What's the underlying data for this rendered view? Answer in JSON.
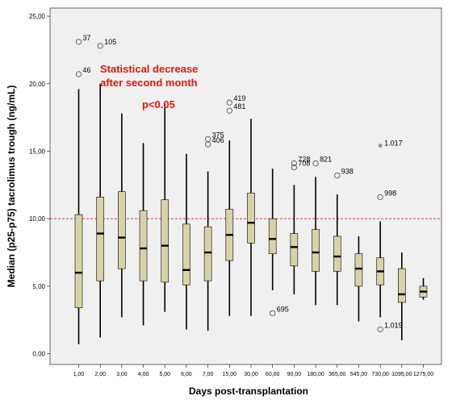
{
  "chart_data": {
    "type": "boxplot",
    "xlabel": "Days post-transplantation",
    "ylabel": "Median (p25-p75) tacrolimus trough (ng/mL)",
    "ylim": [
      -0.8,
      25.6
    ],
    "y_ticks": [
      "0,00",
      "5,00",
      "10,00",
      "15,00",
      "20,00",
      "25,00"
    ],
    "y_tick_values": [
      0,
      5,
      10,
      15,
      20,
      25
    ],
    "reference_line": 10,
    "grid": false,
    "categories": [
      "1,00",
      "2,00",
      "3,00",
      "4,00",
      "5,00",
      "6,00",
      "7,00",
      "15,00",
      "30,00",
      "60,00",
      "90,00",
      "180,00",
      "365,00",
      "545,00",
      "730,00",
      "1095,00",
      "1275,00"
    ],
    "boxes": [
      {
        "min": 0.7,
        "q1": 3.4,
        "median": 6.0,
        "q3": 10.3,
        "max": 19.6
      },
      {
        "min": 1.2,
        "q1": 5.4,
        "median": 8.9,
        "q3": 11.6,
        "max": 20.0
      },
      {
        "min": 2.7,
        "q1": 6.3,
        "median": 8.6,
        "q3": 12.0,
        "max": 17.8
      },
      {
        "min": 2.1,
        "q1": 5.4,
        "median": 7.8,
        "q3": 10.6,
        "max": 15.6
      },
      {
        "min": 3.1,
        "q1": 5.3,
        "median": 8.0,
        "q3": 11.4,
        "max": 18.5
      },
      {
        "min": 1.8,
        "q1": 5.1,
        "median": 6.2,
        "q3": 9.6,
        "max": 14.8
      },
      {
        "min": 1.7,
        "q1": 5.4,
        "median": 7.5,
        "q3": 9.4,
        "max": 13.5
      },
      {
        "min": 2.8,
        "q1": 6.9,
        "median": 8.8,
        "q3": 10.7,
        "max": 15.8
      },
      {
        "min": 2.8,
        "q1": 8.2,
        "median": 9.7,
        "q3": 11.9,
        "max": 17.4
      },
      {
        "min": 4.7,
        "q1": 7.4,
        "median": 8.5,
        "q3": 10.0,
        "max": 13.7
      },
      {
        "min": 4.4,
        "q1": 6.5,
        "median": 7.9,
        "q3": 8.9,
        "max": 12.5
      },
      {
        "min": 3.6,
        "q1": 6.1,
        "median": 7.5,
        "q3": 9.2,
        "max": 13.1
      },
      {
        "min": 3.6,
        "q1": 6.1,
        "median": 7.2,
        "q3": 8.7,
        "max": 11.8
      },
      {
        "min": 2.4,
        "q1": 5.0,
        "median": 6.3,
        "q3": 7.4,
        "max": 8.7
      },
      {
        "min": 2.7,
        "q1": 5.1,
        "median": 6.1,
        "q3": 7.1,
        "max": 9.8
      },
      {
        "min": 1.0,
        "q1": 3.8,
        "median": 4.4,
        "q3": 6.3,
        "max": 7.5
      },
      {
        "min": 4.0,
        "q1": 4.2,
        "median": 4.6,
        "q3": 5.0,
        "max": 5.6
      }
    ],
    "outliers": [
      {
        "category": 0,
        "value": 23.1,
        "marker": "circle",
        "label": "37"
      },
      {
        "category": 0,
        "value": 20.7,
        "marker": "circle",
        "label": "46"
      },
      {
        "category": 1,
        "value": 22.8,
        "marker": "circle",
        "label": "105"
      },
      {
        "category": 7,
        "value": 18.6,
        "marker": "circle",
        "label": "419"
      },
      {
        "category": 7,
        "value": 18.0,
        "marker": "circle",
        "label": "481"
      },
      {
        "category": 6,
        "value": 15.9,
        "marker": "circle",
        "label": "375"
      },
      {
        "category": 6,
        "value": 15.5,
        "marker": "circle",
        "label": "406"
      },
      {
        "category": 9,
        "value": 3.0,
        "marker": "circle",
        "label": "695"
      },
      {
        "category": 10,
        "value": 14.1,
        "marker": "circle",
        "label": "728"
      },
      {
        "category": 10,
        "value": 13.8,
        "marker": "circle",
        "label": "708"
      },
      {
        "category": 11,
        "value": 14.1,
        "marker": "circle",
        "label": "821"
      },
      {
        "category": 12,
        "value": 13.2,
        "marker": "circle",
        "label": "938"
      },
      {
        "category": 14,
        "value": 15.3,
        "marker": "star",
        "label": "1.017"
      },
      {
        "category": 14,
        "value": 11.6,
        "marker": "circle",
        "label": "998"
      },
      {
        "category": 14,
        "value": 1.8,
        "marker": "circle",
        "label": "1.019"
      }
    ],
    "annotations": [
      "Statistical decrease",
      "after second month",
      "p<0.05"
    ],
    "colors": {
      "plot_background": "#f0f0f0",
      "box_fill": "#d8d3a6",
      "reference_line": "#c62828",
      "annotation": "#e8160f"
    }
  }
}
